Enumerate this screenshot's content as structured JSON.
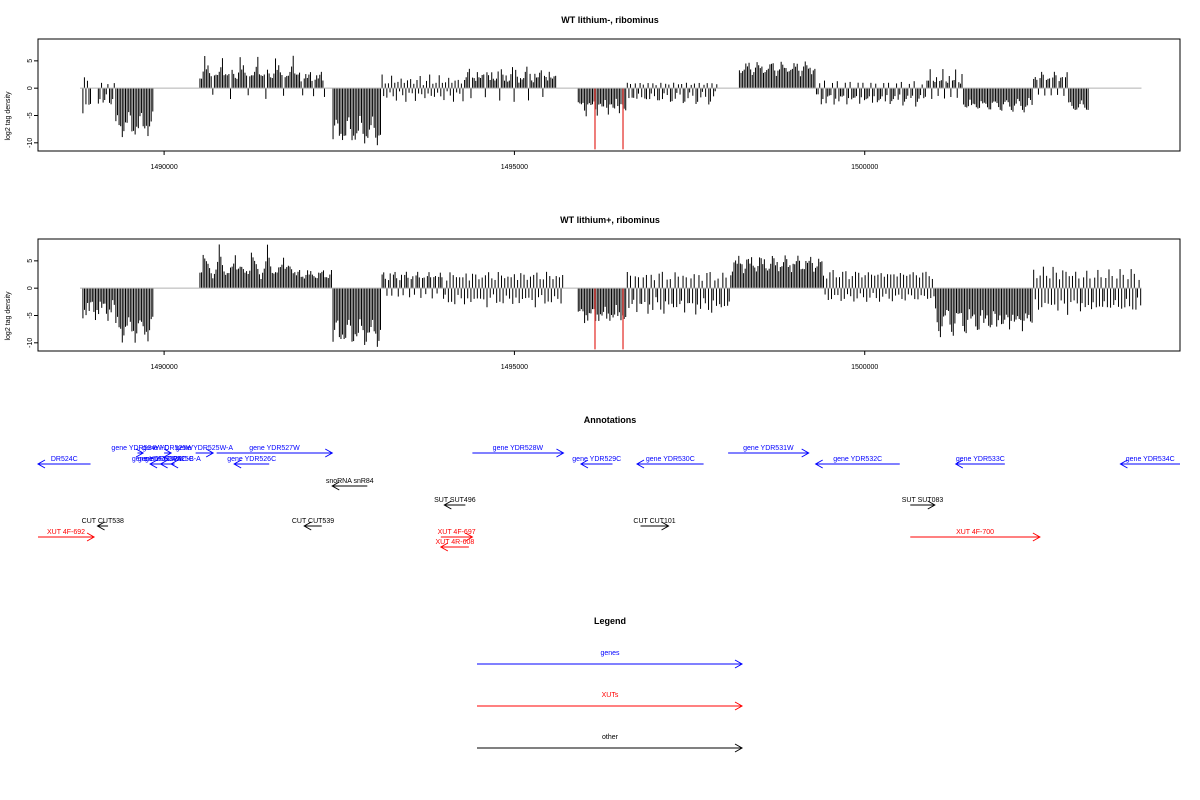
{
  "chart_data": [
    {
      "type": "bar",
      "title": "WT lithium-, ribominus",
      "ylabel": "log2 tag density",
      "ylim": [
        -11.5,
        9
      ],
      "xlim": [
        1488200,
        1504500
      ],
      "y_ticks": [
        "-10",
        "-5",
        "0",
        "5"
      ],
      "x_ticks": [
        "1490000",
        "1495000",
        "1500000"
      ],
      "grid": false,
      "baseline_range": [
        1488800,
        1503950
      ],
      "clusters": [
        {
          "range": [
            1488830,
            1488960
          ],
          "values": [
            -5,
            2,
            -3,
            1.5,
            -4
          ]
        },
        {
          "range": [
            1489050,
            1489300
          ],
          "values": [
            -3,
            -2,
            1,
            -3
          ]
        },
        {
          "range": [
            1489300,
            1489850
          ],
          "values": [
            -9,
            -8,
            -8.5,
            -7.5,
            -9,
            -8,
            -7,
            -8.5,
            -7.8,
            -6.9
          ]
        },
        {
          "range": [
            1490500,
            1491900
          ],
          "values": [
            2.5,
            3,
            4,
            6.5,
            3.5,
            4.2,
            3,
            2.8,
            -2,
            3.4,
            2.9
          ]
        },
        {
          "range": [
            1491900,
            1492300
          ],
          "values": [
            2.5,
            3,
            1.5,
            -2,
            2.8,
            3.2,
            2
          ]
        },
        {
          "range": [
            1492400,
            1493100
          ],
          "values": [
            -10,
            -8.5,
            -9.2,
            -9.8,
            -10.5,
            -8.8,
            -9.5,
            -9
          ]
        },
        {
          "range": [
            1493100,
            1494300
          ],
          "values": [
            2.5,
            -1.5,
            1,
            -2.5,
            1.5,
            -1
          ]
        },
        {
          "range": [
            1494300,
            1495600
          ],
          "values": [
            2,
            3,
            4,
            -2.5,
            3.5,
            2.5,
            1.5,
            3,
            2
          ]
        },
        {
          "range": [
            1495900,
            1496600
          ],
          "values": [
            -3,
            -4,
            -5,
            -3.5,
            -4.5,
            -5.2,
            -3
          ]
        },
        {
          "range": [
            1496600,
            1497900
          ],
          "values": [
            1,
            -2,
            1,
            -3,
            -2.5,
            1,
            -2,
            -1
          ]
        },
        {
          "range": [
            1498200,
            1499300
          ],
          "values": [
            4.5,
            5,
            4.2,
            3.8,
            4.6,
            4,
            5,
            4.3,
            3.9,
            4.4
          ]
        },
        {
          "range": [
            1499300,
            1500900
          ],
          "values": [
            -2,
            -1.5,
            1,
            -3,
            -2,
            1.5,
            -3.5,
            -2.5
          ]
        },
        {
          "range": [
            1500900,
            1501400
          ],
          "values": [
            1.5,
            3.5,
            -2,
            1.5
          ]
        },
        {
          "range": [
            1501400,
            1502400
          ],
          "values": [
            -3,
            -3.5,
            -4,
            -4.5,
            -3.8,
            -4.2,
            -3.2
          ]
        },
        {
          "range": [
            1502400,
            1502900
          ],
          "values": [
            2,
            3,
            2.5,
            -1.5
          ]
        },
        {
          "range": [
            1502900,
            1503200
          ],
          "values": [
            -4
          ]
        }
      ],
      "highlighted_bars": [
        {
          "x": 1496150,
          "y": -11.2
        },
        {
          "x": 1496550,
          "y": -11.2
        }
      ],
      "highlight_color": "#e8534f"
    },
    {
      "type": "bar",
      "title": "WT lithium+, ribominus",
      "ylabel": "log2 tag density",
      "ylim": [
        -11.5,
        9
      ],
      "xlim": [
        1488200,
        1504500
      ],
      "y_ticks": [
        "-10",
        "-5",
        "0",
        "5"
      ],
      "x_ticks": [
        "1490000",
        "1495000",
        "1500000"
      ],
      "grid": false,
      "baseline_range": [
        1488800,
        1503950
      ],
      "clusters": [
        {
          "range": [
            1488830,
            1489300
          ],
          "values": [
            -6,
            -4,
            -5,
            -3,
            -5.5,
            -4.5,
            -3.5,
            -5
          ]
        },
        {
          "range": [
            1489300,
            1489850
          ],
          "values": [
            -9.5,
            -8.5,
            -9,
            -8,
            -10,
            -8.8,
            -7.9,
            -9.2
          ]
        },
        {
          "range": [
            1490500,
            1491900
          ],
          "values": [
            4,
            5,
            8,
            6,
            5,
            4.5,
            4,
            3.5,
            3,
            3.8
          ]
        },
        {
          "range": [
            1491900,
            1492400
          ],
          "values": [
            3,
            3.5,
            2.5,
            3.2,
            2.8
          ]
        },
        {
          "range": [
            1492400,
            1493100
          ],
          "values": [
            -10.5,
            -9.5,
            -10,
            -9,
            -10.8,
            -9.8,
            -8.5,
            -9.6
          ]
        },
        {
          "range": [
            1493100,
            1494000
          ],
          "values": [
            2.5,
            3,
            2,
            -2,
            2.5,
            3.5,
            -1.5
          ]
        },
        {
          "range": [
            1494000,
            1495700
          ],
          "values": [
            -2,
            2,
            -3,
            3,
            -2.5,
            2.5,
            -3.5,
            3,
            -2,
            2.5
          ]
        },
        {
          "range": [
            1495900,
            1496600
          ],
          "values": [
            -5,
            -6,
            -6.5,
            -5.5,
            -7,
            -5,
            -6
          ]
        },
        {
          "range": [
            1496600,
            1498100
          ],
          "values": [
            3,
            -4,
            3,
            -5,
            -3,
            2.5,
            -4.5,
            2,
            -3,
            -3.5
          ]
        },
        {
          "range": [
            1498100,
            1499400
          ],
          "values": [
            5,
            6,
            5.5,
            4.5,
            6,
            5,
            5.8,
            4.8
          ]
        },
        {
          "range": [
            1499400,
            1501000
          ],
          "values": [
            3,
            -2,
            2.5,
            -2.5,
            3,
            -2,
            3.5,
            -1.5
          ]
        },
        {
          "range": [
            1501000,
            1502400
          ],
          "values": [
            -5,
            -7,
            -8,
            -9,
            -7.5,
            -6.5,
            -8,
            -6
          ]
        },
        {
          "range": [
            1502400,
            1503000
          ],
          "values": [
            4,
            -3,
            3,
            -5,
            2.5,
            -3.5
          ]
        },
        {
          "range": [
            1503000,
            1503950
          ],
          "values": [
            3.5,
            -4,
            3,
            -5.5,
            -3,
            2,
            -3.5
          ]
        }
      ],
      "highlighted_bars": [
        {
          "x": 1496150,
          "y": -11.2
        },
        {
          "x": 1496550,
          "y": -11.2
        }
      ],
      "highlight_color": "#e8534f"
    }
  ],
  "annotations": {
    "title": "Annotations",
    "xlim": [
      1488200,
      1504500
    ],
    "features": [
      {
        "label": "DR524C",
        "category": "gene",
        "strand": "-",
        "start": 1487900,
        "end": 1488950,
        "row": 1
      },
      {
        "label": "gene YDR524W-C",
        "category": "gene",
        "strand": "+",
        "start": 1489620,
        "end": 1489700,
        "row": 0
      },
      {
        "label": "gene YDR524W",
        "category": "gene",
        "strand": "-",
        "start": 1489800,
        "end": 1490000,
        "row": 1
      },
      {
        "label": "gene YDR525W",
        "category": "gene",
        "strand": "+",
        "start": 1490000,
        "end": 1490100,
        "row": 0
      },
      {
        "label": "gene YDR524C-B",
        "category": "gene",
        "strand": "-",
        "start": 1489950,
        "end": 1490100,
        "row": 1
      },
      {
        "label": "gene YDR525C-A",
        "category": "gene",
        "strand": "-",
        "start": 1490100,
        "end": 1490150,
        "row": 1
      },
      {
        "label": "gene YDR525W-A",
        "category": "gene",
        "strand": "+",
        "start": 1490450,
        "end": 1490700,
        "row": 0
      },
      {
        "label": "gene YDR527W",
        "category": "gene",
        "strand": "+",
        "start": 1490750,
        "end": 1492400,
        "row": 0
      },
      {
        "label": "gene YDR526C",
        "category": "gene",
        "strand": "-",
        "start": 1491000,
        "end": 1491500,
        "row": 1
      },
      {
        "label": "gene YDR528W",
        "category": "gene",
        "strand": "+",
        "start": 1494400,
        "end": 1495700,
        "row": 0
      },
      {
        "label": "gene YDR529C",
        "category": "gene",
        "strand": "-",
        "start": 1495950,
        "end": 1496400,
        "row": 1
      },
      {
        "label": "gene YDR530C",
        "category": "gene",
        "strand": "-",
        "start": 1496750,
        "end": 1497700,
        "row": 1
      },
      {
        "label": "gene YDR531W",
        "category": "gene",
        "strand": "+",
        "start": 1498050,
        "end": 1499200,
        "row": 0
      },
      {
        "label": "gene YDR532C",
        "category": "gene",
        "strand": "-",
        "start": 1499300,
        "end": 1500500,
        "row": 1
      },
      {
        "label": "gene YDR533C",
        "category": "gene",
        "strand": "-",
        "start": 1501300,
        "end": 1502000,
        "row": 1
      },
      {
        "label": "gene YDR534C",
        "category": "gene",
        "strand": "-",
        "start": 1503650,
        "end": 1504700,
        "row": 1
      },
      {
        "label": "snoRNA snR84",
        "category": "other",
        "strand": "-",
        "start": 1492400,
        "end": 1492900,
        "row": 2
      },
      {
        "label": "SUT SUT496",
        "category": "other",
        "strand": "-",
        "start": 1494000,
        "end": 1494300,
        "row": 3
      },
      {
        "label": "SUT SUT083",
        "category": "other",
        "strand": "+",
        "start": 1500650,
        "end": 1501000,
        "row": 3
      },
      {
        "label": "CUT CUT538",
        "category": "other",
        "strand": "-",
        "start": 1489050,
        "end": 1489200,
        "row": 4
      },
      {
        "label": "CUT CUT539",
        "category": "other",
        "strand": "-",
        "start": 1492000,
        "end": 1492250,
        "row": 4
      },
      {
        "label": "CUT CUT101",
        "category": "other",
        "strand": "+",
        "start": 1496800,
        "end": 1497200,
        "row": 4
      },
      {
        "label": "XUT 4F-692",
        "category": "XUT",
        "strand": "+",
        "start": 1488200,
        "end": 1489000,
        "row": 5
      },
      {
        "label": "XUT 4F-697",
        "category": "XUT",
        "strand": "+",
        "start": 1493950,
        "end": 1494400,
        "row": 5
      },
      {
        "label": "XUT 4R-608",
        "category": "XUT",
        "strand": "-",
        "start": 1493950,
        "end": 1494350,
        "row": 6
      },
      {
        "label": "XUT 4F-700",
        "category": "XUT",
        "strand": "+",
        "start": 1500650,
        "end": 1502500,
        "row": 5
      }
    ]
  },
  "legend": {
    "title": "Legend",
    "items": [
      {
        "label": "genes",
        "color": "#0000ff"
      },
      {
        "label": "XUTs",
        "color": "#ff0000"
      },
      {
        "label": "other",
        "color": "#000000"
      }
    ]
  },
  "colors": {
    "gene": "#0000ff",
    "XUT": "#ff0000",
    "other": "#000000",
    "baseline": "#b0b0b0"
  }
}
